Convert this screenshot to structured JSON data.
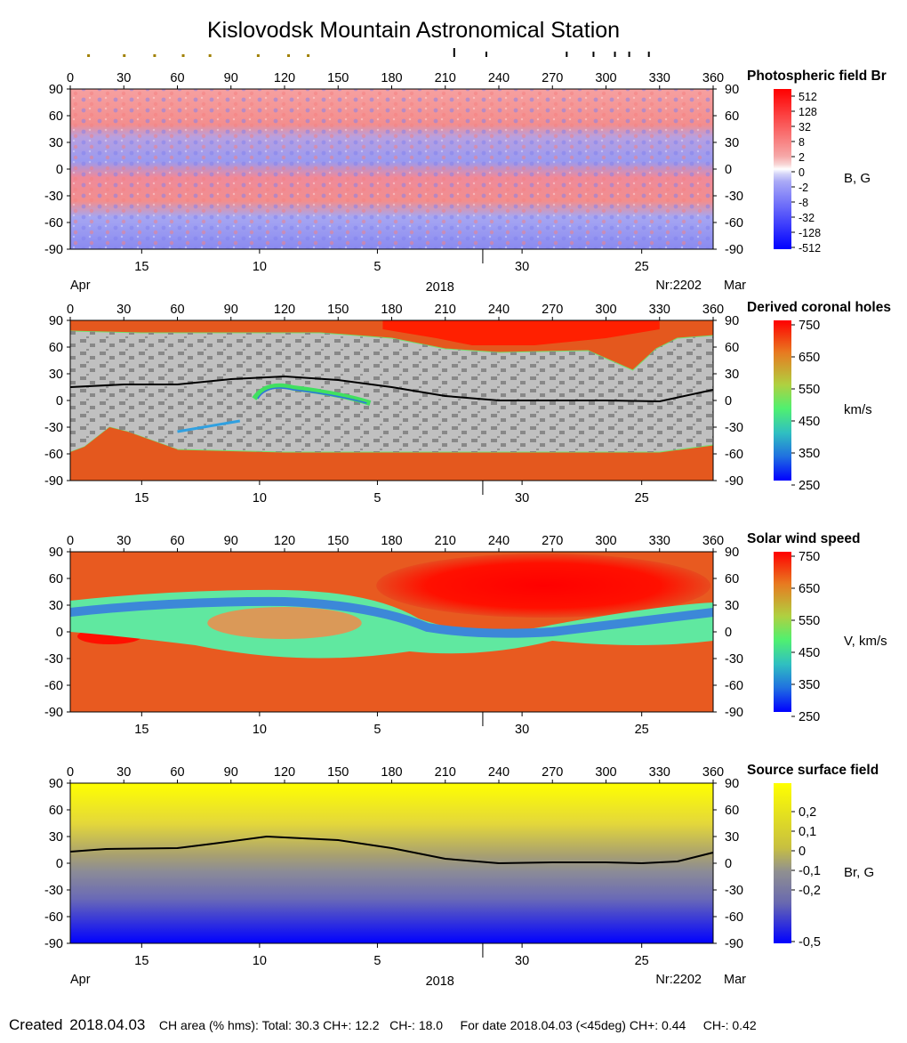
{
  "title": "Kislovodsk Mountain Astronomical Station",
  "top_marks": {
    "olive": [
      10,
      30,
      47,
      63,
      78,
      105,
      122,
      133
    ],
    "black": [
      215,
      233,
      278,
      293,
      305,
      313,
      324
    ]
  },
  "lon_ticks": [
    "0",
    "30",
    "60",
    "90",
    "120",
    "150",
    "180",
    "210",
    "240",
    "270",
    "300",
    "330",
    "360"
  ],
  "lat_ticks": [
    "90",
    "60",
    "30",
    "0",
    "-30",
    "-60",
    "-90"
  ],
  "bottom_axis": {
    "dates": [
      {
        "label": "15",
        "lon": 40
      },
      {
        "label": "10",
        "lon": 106
      },
      {
        "label": "5",
        "lon": 172
      },
      {
        "label": "30",
        "lon": 253
      },
      {
        "label": "25",
        "lon": 320
      }
    ],
    "month_divider_lon": 231,
    "left_month": "Apr",
    "year": "2018",
    "carrington": "Nr:2202",
    "right_month": "Mar"
  },
  "panels": [
    {
      "key": "photo",
      "title": "Photospheric field Br",
      "unit": "B, G",
      "scale_labels": [
        "512",
        "128",
        "32",
        "8",
        "2",
        "0",
        "-2",
        "-8",
        "-32",
        "-128",
        "-512"
      ],
      "show_bottom_labels": true
    },
    {
      "key": "coronal",
      "title": "Derived coronal holes",
      "unit": "km/s",
      "scale_labels": [
        "750",
        "650",
        "550",
        "450",
        "350",
        "250"
      ],
      "show_bottom_labels": false
    },
    {
      "key": "wind",
      "title": "Solar wind speed",
      "unit": "V, km/s",
      "scale_labels": [
        "750",
        "650",
        "550",
        "450",
        "350",
        "250"
      ],
      "show_bottom_labels": false
    },
    {
      "key": "source",
      "title": "Source surface field",
      "unit": "Br, G",
      "scale_labels": [
        "0,2",
        "0,1",
        "0",
        "-0,1",
        "-0,2",
        "-0,5"
      ],
      "show_bottom_labels": true
    }
  ],
  "chart_data": [
    {
      "type": "heatmap",
      "title": "Photospheric field Br",
      "xlabel": "",
      "ylabel": "",
      "xlim": [
        0,
        360
      ],
      "ylim": [
        -90,
        90
      ],
      "colorbar": {
        "label": "B, G",
        "ticks": [
          512,
          128,
          32,
          8,
          2,
          0,
          -2,
          -8,
          -32,
          -128,
          -512
        ]
      }
    },
    {
      "type": "heatmap",
      "title": "Derived coronal holes",
      "xlim": [
        0,
        360
      ],
      "ylim": [
        -90,
        90
      ],
      "colorbar": {
        "label": "km/s",
        "ticks": [
          750,
          650,
          550,
          450,
          350,
          250
        ]
      },
      "neutral_line": {
        "x": [
          0,
          30,
          60,
          90,
          120,
          150,
          180,
          210,
          240,
          270,
          300,
          330,
          360
        ],
        "y": [
          15,
          18,
          18,
          24,
          27,
          23,
          15,
          5,
          0,
          0,
          0,
          -1,
          12
        ]
      }
    },
    {
      "type": "heatmap",
      "title": "Solar wind speed",
      "xlim": [
        0,
        360
      ],
      "ylim": [
        -90,
        90
      ],
      "colorbar": {
        "label": "V, km/s",
        "ticks": [
          750,
          650,
          550,
          450,
          350,
          250
        ]
      }
    },
    {
      "type": "heatmap",
      "title": "Source surface field",
      "xlim": [
        0,
        360
      ],
      "ylim": [
        -90,
        90
      ],
      "colorbar": {
        "label": "Br, G",
        "ticks": [
          0.2,
          0.1,
          0,
          -0.1,
          -0.2,
          -0.5
        ]
      },
      "neutral_line": {
        "x": [
          0,
          20,
          60,
          80,
          110,
          150,
          180,
          210,
          240,
          270,
          300,
          320,
          340,
          360
        ],
        "y": [
          13,
          16,
          17,
          22,
          30,
          26,
          17,
          5,
          0,
          1,
          1,
          0,
          2,
          12
        ]
      }
    }
  ],
  "footer": {
    "created_label": "Created",
    "created_date": "2018.04.03",
    "ch_area": "CH area (% hms): Total: 30.3 CH+: 12.2",
    "ch_minus": "CH-: 18.0",
    "for_date": "For date 2018.04.03 (<45deg) CH+: 0.44",
    "ch_minus2": "CH-: 0.42"
  },
  "colors": {
    "photo_pos": "#f48a8a",
    "photo_neg": "#8c8cf0",
    "ch_gray": "#c0c0c0",
    "ch_dark": "#808080",
    "wind_fast": "#e84a1e",
    "wind_red": "#ff0000",
    "src_top": "#ffff00",
    "src_bottom": "#0000ff"
  }
}
